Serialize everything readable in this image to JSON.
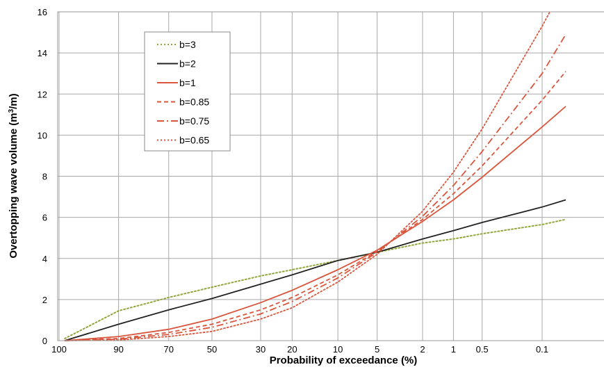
{
  "chart_data": {
    "type": "line",
    "xlabel": "Probability of exceedance (%)",
    "ylabel": "Overtopping wave volume (m³/m)",
    "x_scale": "Weibull probability (reversed)",
    "xlim": [
      100,
      0.05
    ],
    "ylim": [
      0,
      16
    ],
    "x_ticks": [
      100,
      90,
      70,
      50,
      30,
      20,
      10,
      5,
      2,
      1,
      0.5,
      0.1
    ],
    "x_tick_labels": [
      "100",
      "90",
      "70",
      "50",
      "30",
      "20",
      "10",
      "5",
      "2",
      "1",
      "0.5",
      "0.1"
    ],
    "y_ticks": [
      0,
      2,
      4,
      6,
      8,
      10,
      12,
      14,
      16
    ],
    "grid": true,
    "legend_position": "top-left",
    "series": [
      {
        "name": "b=3",
        "color": "#8fa63a",
        "dash": "dotted",
        "x": [
          99.9,
          90,
          80,
          70,
          50,
          30,
          20,
          10,
          5,
          2,
          1,
          0.5,
          0.1,
          0.05
        ],
        "y": [
          0.1,
          1.45,
          1.8,
          2.1,
          2.6,
          3.15,
          3.45,
          3.9,
          4.3,
          4.75,
          4.95,
          5.2,
          5.65,
          5.9
        ]
      },
      {
        "name": "b=2",
        "color": "#222222",
        "dash": "solid",
        "x": [
          99.9,
          90,
          70,
          50,
          30,
          20,
          10,
          5,
          2,
          1,
          0.5,
          0.1,
          0.05
        ],
        "y": [
          0.0,
          0.8,
          1.5,
          2.05,
          2.75,
          3.2,
          3.9,
          4.3,
          4.95,
          5.35,
          5.75,
          6.5,
          6.85
        ]
      },
      {
        "name": "b=1",
        "color": "#d9553b",
        "dash": "solid",
        "x": [
          99.9,
          90,
          70,
          50,
          30,
          20,
          10,
          5,
          2,
          1,
          0.5,
          0.1,
          0.05
        ],
        "y": [
          0.0,
          0.2,
          0.55,
          1.05,
          1.85,
          2.45,
          3.45,
          4.4,
          5.8,
          6.85,
          7.95,
          10.4,
          11.4
        ]
      },
      {
        "name": "b=0.85",
        "color": "#d9553b",
        "dash": "dashed",
        "x": [
          99.9,
          90,
          70,
          50,
          30,
          20,
          10,
          5,
          2,
          1,
          0.5,
          0.1,
          0.05
        ],
        "y": [
          0.0,
          0.1,
          0.4,
          0.8,
          1.5,
          2.1,
          3.2,
          4.35,
          5.9,
          7.15,
          8.5,
          11.7,
          13.1
        ]
      },
      {
        "name": "b=0.75",
        "color": "#d9553b",
        "dash": "dashdot",
        "x": [
          99.9,
          90,
          70,
          50,
          30,
          20,
          10,
          5,
          2,
          1,
          0.5,
          0.1,
          0.05
        ],
        "y": [
          0.0,
          0.07,
          0.3,
          0.65,
          1.3,
          1.9,
          3.05,
          4.3,
          6.05,
          7.55,
          9.2,
          13.0,
          14.9
        ]
      },
      {
        "name": "b=0.65",
        "color": "#d9553b",
        "dash": "dotted",
        "x": [
          99.9,
          90,
          70,
          50,
          30,
          20,
          10,
          5,
          2,
          1,
          0.5,
          0.1,
          0.08
        ],
        "y": [
          0.0,
          0.03,
          0.2,
          0.45,
          1.05,
          1.6,
          2.85,
          4.2,
          6.3,
          8.2,
          10.3,
          15.3,
          16.0
        ]
      }
    ]
  }
}
